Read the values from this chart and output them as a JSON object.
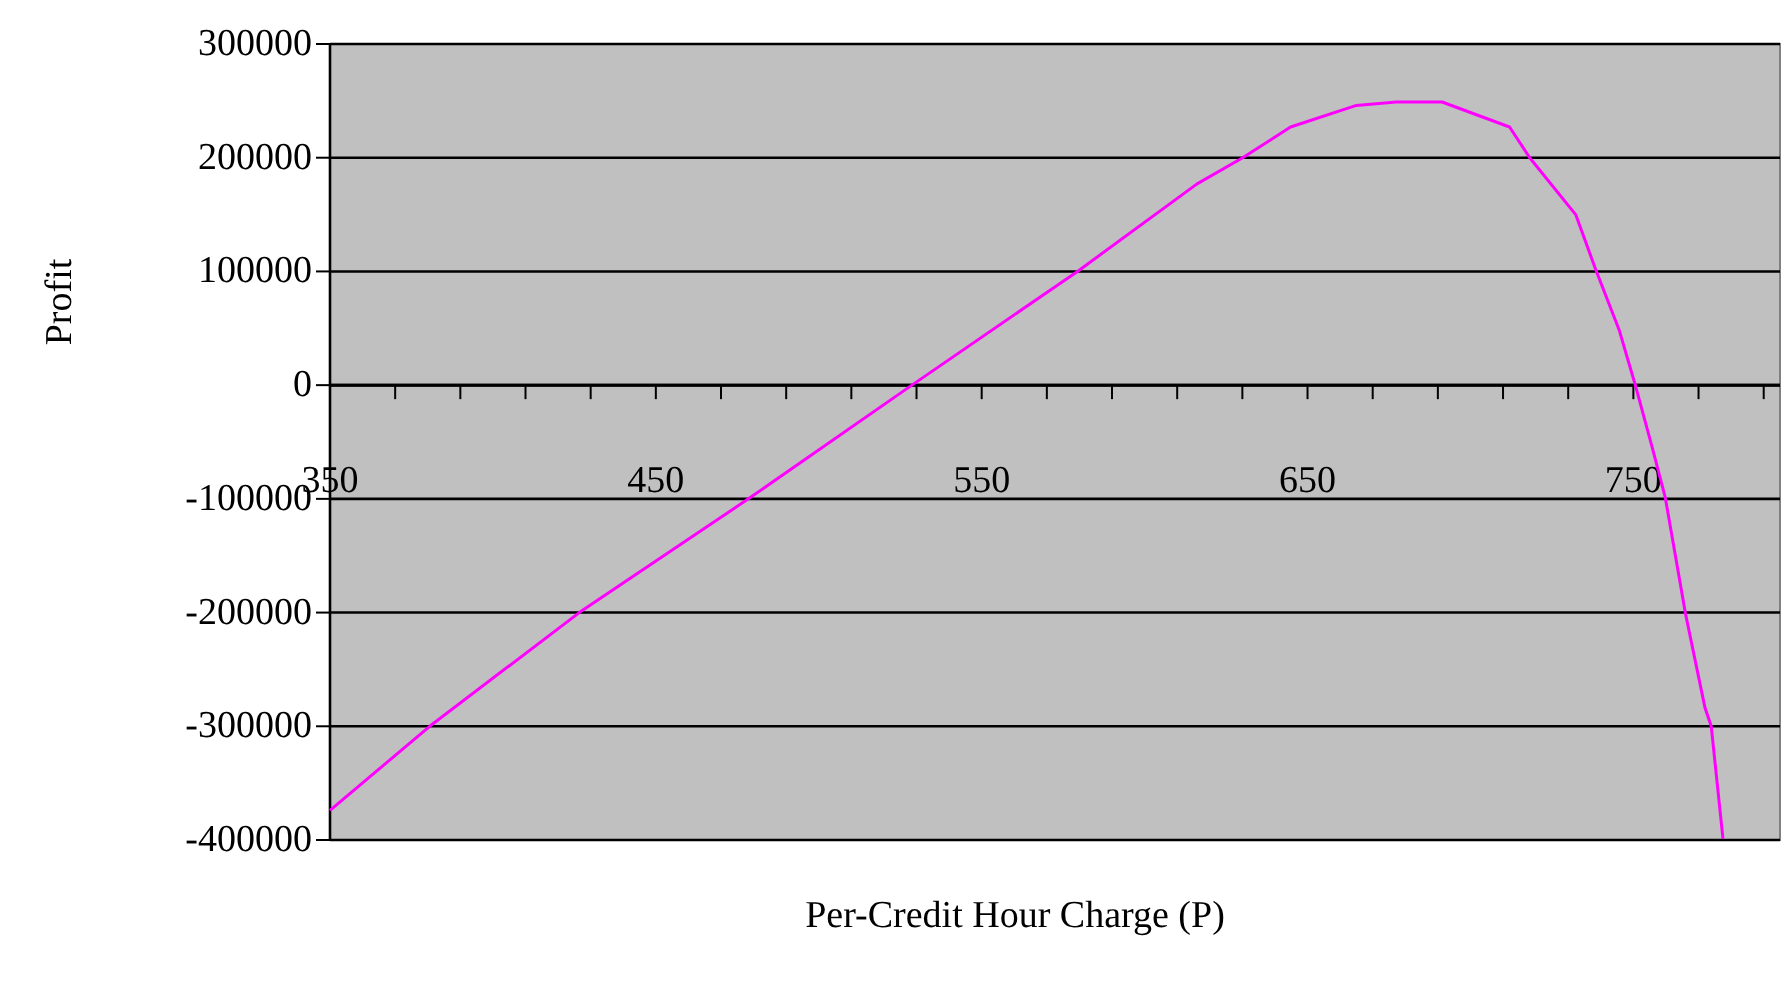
{
  "chart_data": {
    "type": "line",
    "xlabel": "Per-Credit Hour Charge (P)",
    "ylabel": "Profit",
    "xlim": [
      350,
      795
    ],
    "xticks": [
      350,
      {
        "value": 370,
        "label": null
      },
      {
        "value": 390,
        "label": null
      },
      {
        "value": 410,
        "label": null
      },
      {
        "value": 430,
        "label": null
      },
      450,
      {
        "value": 470,
        "label": null
      },
      {
        "value": 490,
        "label": null
      },
      {
        "value": 510,
        "label": null
      },
      {
        "value": 530,
        "label": null
      },
      550,
      {
        "value": 570,
        "label": null
      },
      {
        "value": 590,
        "label": null
      },
      {
        "value": 610,
        "label": null
      },
      {
        "value": 630,
        "label": null
      },
      650,
      {
        "value": 670,
        "label": null
      },
      {
        "value": 690,
        "label": null
      },
      {
        "value": 710,
        "label": null
      },
      {
        "value": 730,
        "label": null
      },
      750,
      {
        "value": 770,
        "label": null
      },
      {
        "value": 790,
        "label": null
      }
    ],
    "ylim": [
      -400000,
      300000
    ],
    "yticks": [
      -400000,
      -300000,
      -200000,
      -100000,
      0,
      100000,
      200000,
      300000
    ],
    "grid": "y",
    "marker": "none",
    "line_style": "solid",
    "series": [
      {
        "color": "#ff00ff",
        "x": [
          350,
          380.6,
          426.5,
          478.4,
          528.6,
          579.4,
          616.1,
          630.1,
          644.8,
          665,
          677.2,
          691.3,
          712,
          718.2,
          732.3,
          738.4,
          745.7,
          750.6,
          755.8,
          759.8,
          766,
          772,
          773.9,
          777.5
        ],
        "values": [
          -374000,
          -300000,
          -200000,
          -100000,
          0,
          100000,
          177000,
          200000,
          227000,
          246000,
          249000,
          249000,
          227000,
          200000,
          150000,
          102000,
          48000,
          0,
          -55000,
          -99000,
          -201000,
          -284000,
          -300000,
          -399000
        ]
      }
    ]
  }
}
